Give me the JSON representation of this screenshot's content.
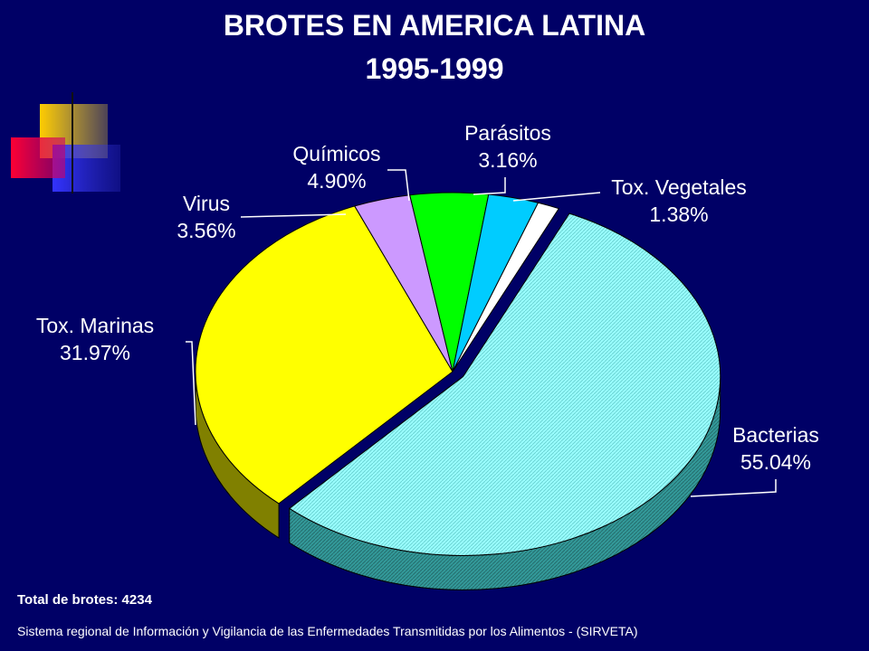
{
  "header": {
    "title_line1": "BROTES EN AMERICA LATINA",
    "title_line2": "1995-1999"
  },
  "footer": {
    "total": "Total de brotes: 4234",
    "source": "Sistema regional de  Información y Vigilancia de las Enfermedades Transmitidas por los Alimentos - (SIRVETA)"
  },
  "chart_data": {
    "type": "pie",
    "title": "BROTES EN AMERICA LATINA 1995-1999",
    "legend": "none",
    "slices": [
      {
        "label": "Bacterias",
        "value": 55.04,
        "value_label": "55.04%",
        "color": "#99ffff"
      },
      {
        "label": "Tox. Marinas",
        "value": 31.97,
        "value_label": "31.97%",
        "color": "#ffff00"
      },
      {
        "label": "Virus",
        "value": 3.56,
        "value_label": "3.56%",
        "color": "#cc99ff"
      },
      {
        "label": "Químicos",
        "value": 4.9,
        "value_label": "4.90%",
        "color": "#00ff00"
      },
      {
        "label": "Parásitos",
        "value": 3.16,
        "value_label": "3.16%",
        "color": "#00ccff"
      },
      {
        "label": "Tox. Vegetales",
        "value": 1.38,
        "value_label": "1.38%",
        "color": "#ffffff"
      }
    ]
  },
  "colors": {
    "background": "#000066",
    "text": "#ffffff"
  }
}
